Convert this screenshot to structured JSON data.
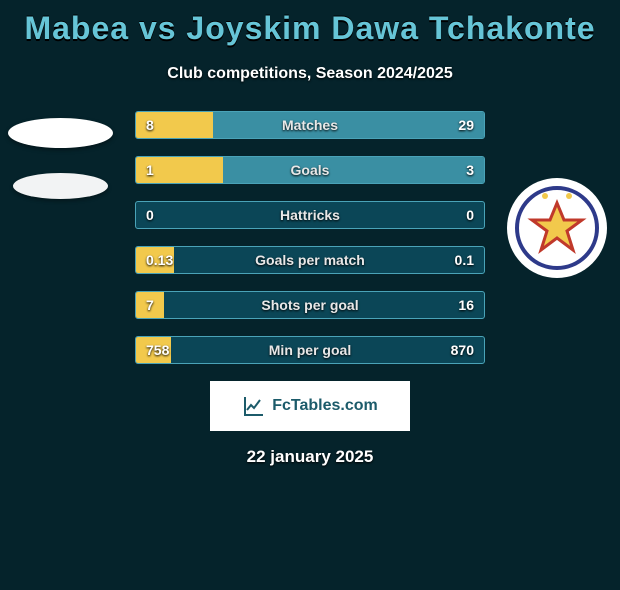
{
  "background_color": "#05232b",
  "accent_color": "#66c5d7",
  "title": "Mabea vs Joyskim Dawa Tchakonte",
  "subtitle": "Club competitions, Season 2024/2025",
  "bars": {
    "track_color": "#0b4657",
    "border_color": "#4aa3b8",
    "left_fill_color": "#f2c94c",
    "right_fill_color": "#3a8fa3",
    "rows": [
      {
        "label": "Matches",
        "left_val": "8",
        "right_val": "29",
        "left_pct": 22,
        "right_pct": 78
      },
      {
        "label": "Goals",
        "left_val": "1",
        "right_val": "3",
        "left_pct": 25,
        "right_pct": 75
      },
      {
        "label": "Hattricks",
        "left_val": "0",
        "right_val": "0",
        "left_pct": 0,
        "right_pct": 0
      },
      {
        "label": "Goals per match",
        "left_val": "0.13",
        "right_val": "0.1",
        "left_pct": 11,
        "right_pct": 0
      },
      {
        "label": "Shots per goal",
        "left_val": "7",
        "right_val": "16",
        "left_pct": 8,
        "right_pct": 0
      },
      {
        "label": "Min per goal",
        "left_val": "758",
        "right_val": "870",
        "left_pct": 10,
        "right_pct": 0
      }
    ]
  },
  "brand": {
    "label": "FcTables.com"
  },
  "date": "22 january 2025",
  "logos": {
    "left": {
      "name": "player-a-club-logo"
    },
    "right": {
      "name": "player-b-club-logo"
    }
  }
}
